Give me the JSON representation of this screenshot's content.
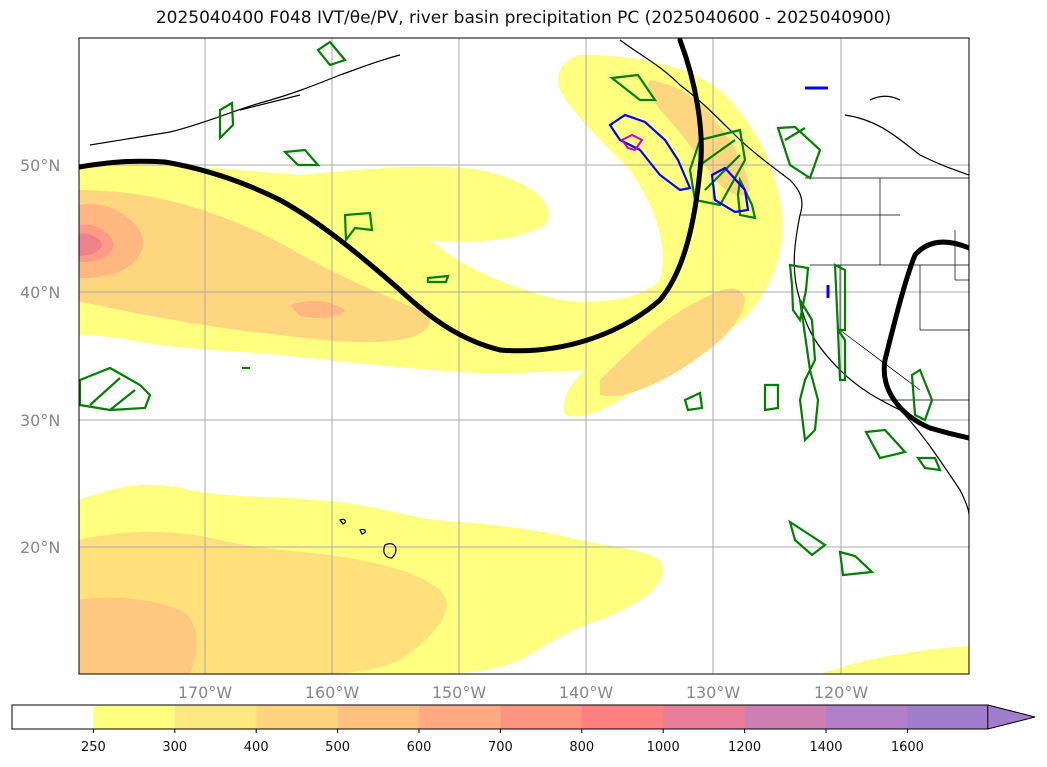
{
  "title": "2025040400 F048 IVT/θe/PV, river basin precipitation PC (2025040600 - 2025040900)",
  "lat_labels": [
    "50°N",
    "40°N",
    "30°N",
    "20°N"
  ],
  "lon_labels": [
    "170°W",
    "160°W",
    "150°W",
    "140°W",
    "130°W",
    "120°W"
  ],
  "colorbar": {
    "ticks": [
      "250",
      "300",
      "400",
      "500",
      "600",
      "700",
      "800",
      "1000",
      "1200",
      "1400",
      "1600"
    ],
    "colors": [
      "#ffffff",
      "#ffff80",
      "#ffe880",
      "#ffd480",
      "#ffc080",
      "#ffaa80",
      "#ff9480",
      "#ff8080",
      "#e87e9a",
      "#cc7fb5",
      "#b07fc8",
      "#a07ecc"
    ]
  },
  "colors": {
    "contour": "#000000",
    "precip_green": "#008000",
    "precip_blue": "#0000ff",
    "precip_magenta": "#cc00cc",
    "grid": "#aaaaaa"
  }
}
